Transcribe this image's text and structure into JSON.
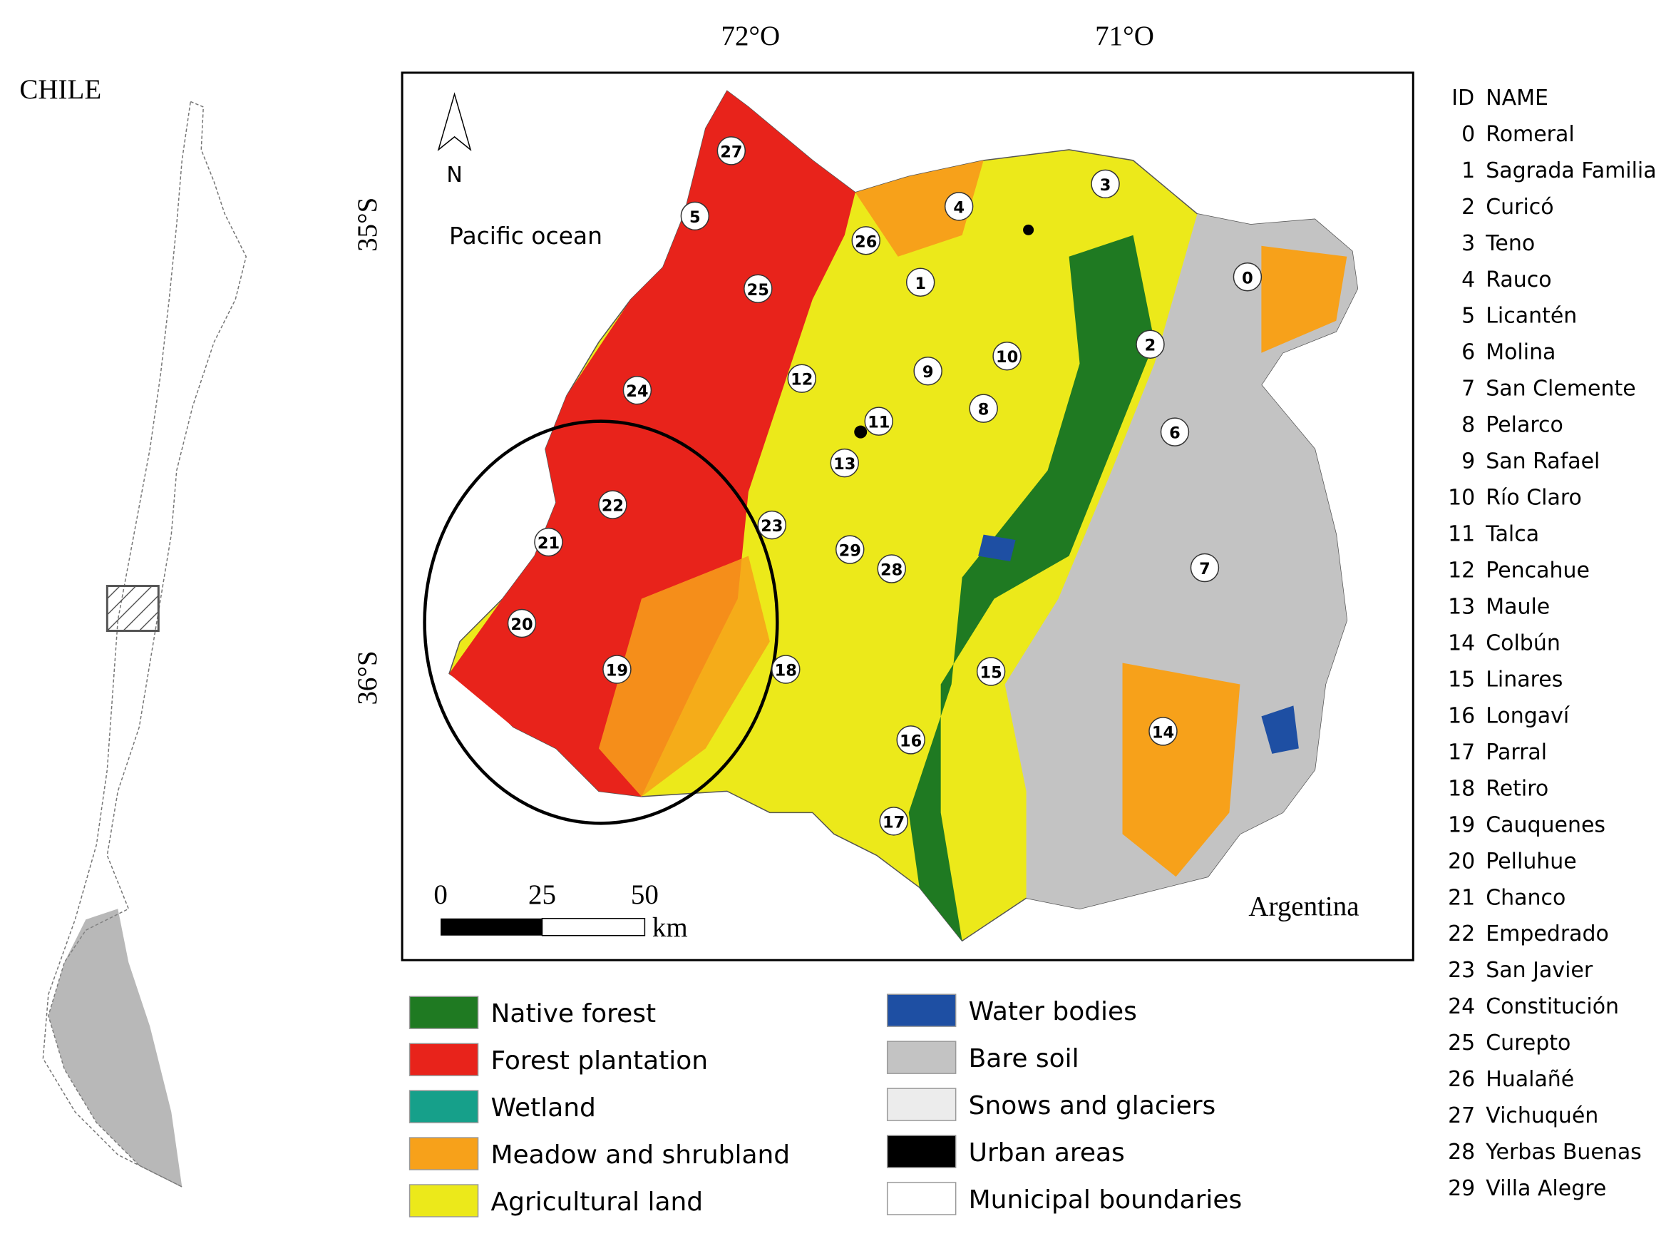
{
  "inset_title": "CHILE",
  "axes": {
    "lon_labels": [
      "72°O",
      "71°O"
    ],
    "lat_labels": [
      "35°S",
      "36°S"
    ]
  },
  "north": "N",
  "places": {
    "ocean": "Pacific ocean",
    "country": "Argentina"
  },
  "scale_bar": {
    "ticks": [
      "0",
      "25",
      "50"
    ],
    "unit": "km"
  },
  "legend": [
    {
      "label": "Native forest",
      "color": "#1f7a22"
    },
    {
      "label": "Forest plantation",
      "color": "#e8231b"
    },
    {
      "label": "Wetland",
      "color": "#16a08a"
    },
    {
      "label": "Meadow and shrubland",
      "color": "#f7a11a"
    },
    {
      "label": "Agricultural land",
      "color": "#ece91a"
    },
    {
      "label": "Water bodies",
      "color": "#1e4fa3"
    },
    {
      "label": "Bare soil",
      "color": "#c3c3c3"
    },
    {
      "label": "Snows and glaciers",
      "color": "#ececec"
    },
    {
      "label": "Urban areas",
      "color": "#000000"
    },
    {
      "label": "Municipal boundaries",
      "color": "#ffffff"
    }
  ],
  "table": {
    "header": [
      "ID",
      "NAME"
    ],
    "rows": [
      [
        "0",
        "Romeral"
      ],
      [
        "1",
        "Sagrada Familia"
      ],
      [
        "2",
        "Curicó"
      ],
      [
        "3",
        "Teno"
      ],
      [
        "4",
        "Rauco"
      ],
      [
        "5",
        "Licantén"
      ],
      [
        "6",
        "Molina"
      ],
      [
        "7",
        "San Clemente"
      ],
      [
        "8",
        "Pelarco"
      ],
      [
        "9",
        "San Rafael"
      ],
      [
        "10",
        "Río Claro"
      ],
      [
        "11",
        "Talca"
      ],
      [
        "12",
        "Pencahue"
      ],
      [
        "13",
        "Maule"
      ],
      [
        "14",
        "Colbún"
      ],
      [
        "15",
        "Linares"
      ],
      [
        "16",
        "Longaví"
      ],
      [
        "17",
        "Parral"
      ],
      [
        "18",
        "Retiro"
      ],
      [
        "19",
        "Cauquenes"
      ],
      [
        "20",
        "Pelluhue"
      ],
      [
        "21",
        "Chanco"
      ],
      [
        "22",
        "Empedrado"
      ],
      [
        "23",
        "San Javier"
      ],
      [
        "24",
        "Constitución"
      ],
      [
        "25",
        "Curepto"
      ],
      [
        "26",
        "Hualañé"
      ],
      [
        "27",
        "Vichuquén"
      ],
      [
        "28",
        "Yerbas Buenas"
      ],
      [
        "29",
        "Villa Alegre"
      ]
    ]
  }
}
